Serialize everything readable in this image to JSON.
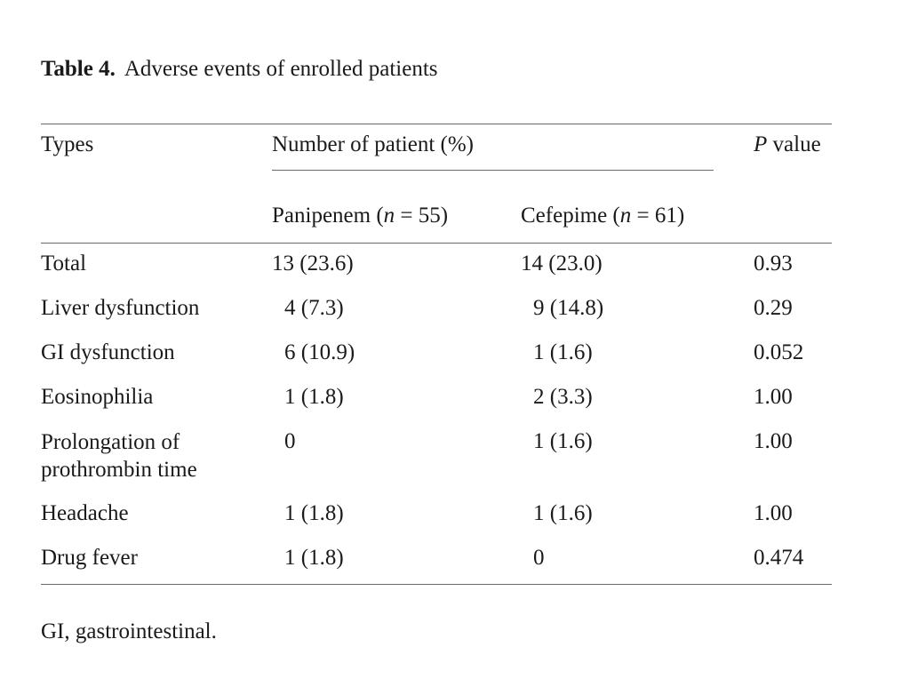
{
  "caption": {
    "label": "Table 4.",
    "title": "Adverse events of enrolled patients"
  },
  "headers": {
    "types": "Types",
    "number_group": "Number of patient (%)",
    "p_value_italic": "P",
    "p_value_rest": " value",
    "panipenem_name": "Panipenem (",
    "panipenem_n_var": "n",
    "panipenem_n_rest": " = 55)",
    "cefepime_name": "Cefepime (",
    "cefepime_n_var": "n",
    "cefepime_n_rest": " = 61)"
  },
  "rows": [
    {
      "type": "Total",
      "panipenem": "13 (23.6)",
      "cefepime": "14 (23.0)",
      "p": "0.93"
    },
    {
      "type": "Liver dysfunction",
      "panipenem": "4 (7.3)",
      "cefepime": "9 (14.8)",
      "p": "0.29"
    },
    {
      "type": "GI dysfunction",
      "panipenem": "6 (10.9)",
      "cefepime": "1 (1.6)",
      "p": "0.052"
    },
    {
      "type": "Eosinophilia",
      "panipenem": "1 (1.8)",
      "cefepime": "2 (3.3)",
      "p": "1.00"
    },
    {
      "type_line1": "Prolongation of",
      "type_line2": "prothrombin time",
      "panipenem": "0",
      "cefepime": "1 (1.6)",
      "p": "1.00"
    },
    {
      "type": "Headache",
      "panipenem": "1 (1.8)",
      "cefepime": "1 (1.6)",
      "p": "1.00"
    },
    {
      "type": "Drug fever",
      "panipenem": "1 (1.8)",
      "cefepime": "0",
      "p": "0.474"
    }
  ],
  "footnote": "GI, gastrointestinal."
}
